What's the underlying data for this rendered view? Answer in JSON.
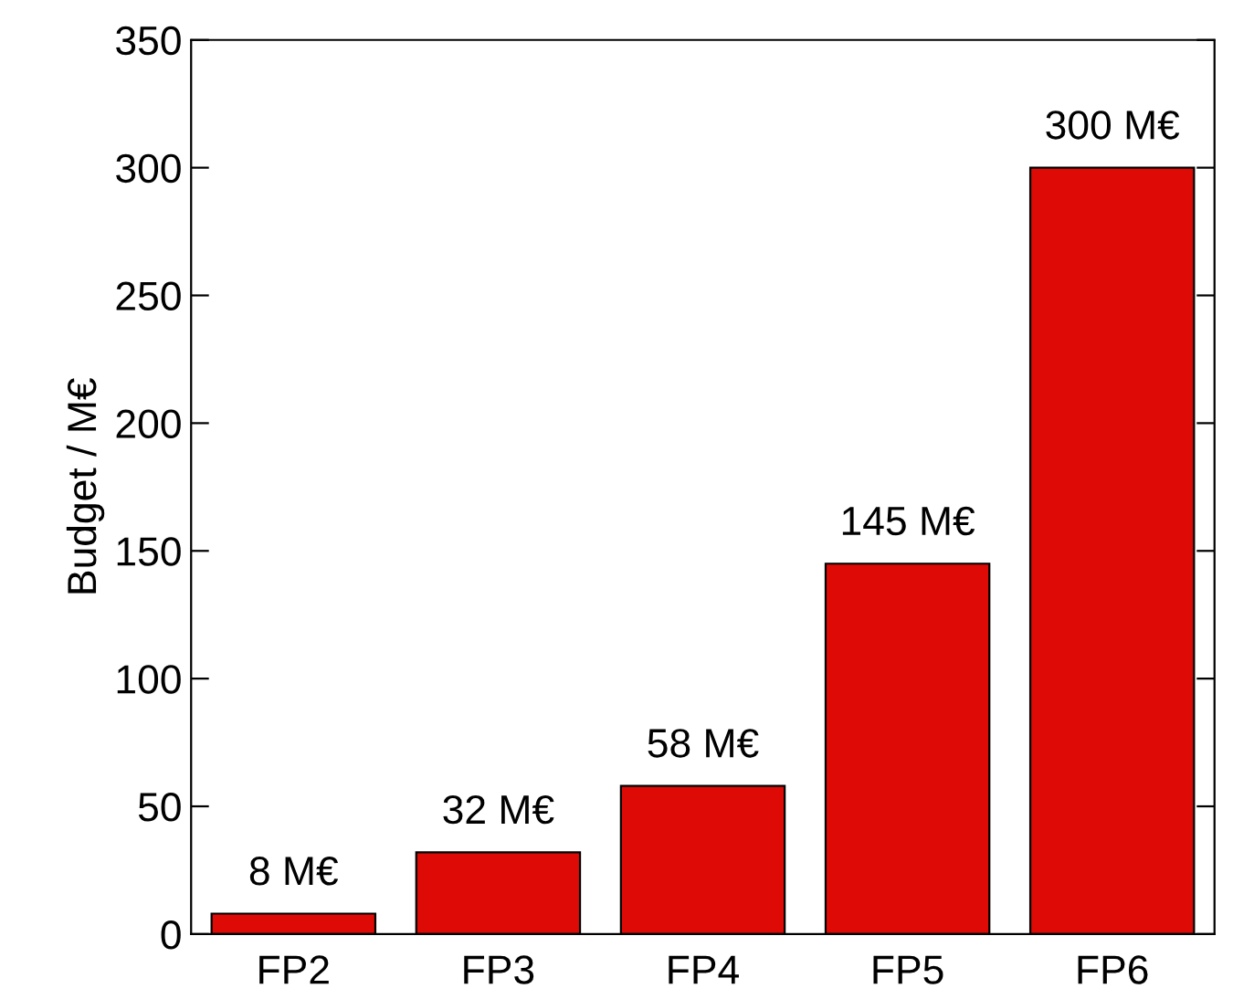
{
  "chart_data": {
    "type": "bar",
    "ylabel": "Budget / M€",
    "categories": [
      "FP2",
      "FP3",
      "FP4",
      "FP5",
      "FP6"
    ],
    "values": [
      8,
      32,
      58,
      145,
      300
    ],
    "value_labels": [
      "8 M€",
      "32 M€",
      "58 M€",
      "145 M€",
      "300 M€"
    ],
    "color": "#dd0a06",
    "ylim": [
      0,
      350
    ],
    "yticks": [
      0,
      50,
      100,
      150,
      200,
      250,
      300,
      350
    ],
    "grid": false,
    "legend": false
  }
}
